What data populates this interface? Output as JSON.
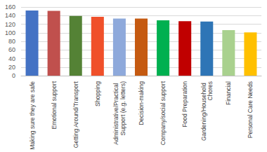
{
  "chart_data": {
    "type": "bar",
    "categories": [
      "Making sure they are safe",
      "Emotional support",
      "Getting Around/Transport",
      "Shopping",
      "Administrative/Practical Support (e.g. letters)",
      "Decision-making",
      "Company/social support",
      "Food Preparation",
      "Gardening/Household Chores",
      "Financial",
      "Personal Care Needs"
    ],
    "values": [
      152,
      151,
      139,
      137,
      133,
      133,
      129,
      127,
      126,
      106,
      101
    ],
    "colors": [
      "#4472c4",
      "#c0504d",
      "#548235",
      "#f0502a",
      "#8ea9db",
      "#c55a11",
      "#00b050",
      "#c00000",
      "#2e75b6",
      "#a9d18e",
      "#ffc000"
    ],
    "ylim": [
      0,
      160
    ],
    "yticks": [
      0,
      20,
      40,
      60,
      80,
      100,
      120,
      140,
      160
    ],
    "grid": true
  }
}
